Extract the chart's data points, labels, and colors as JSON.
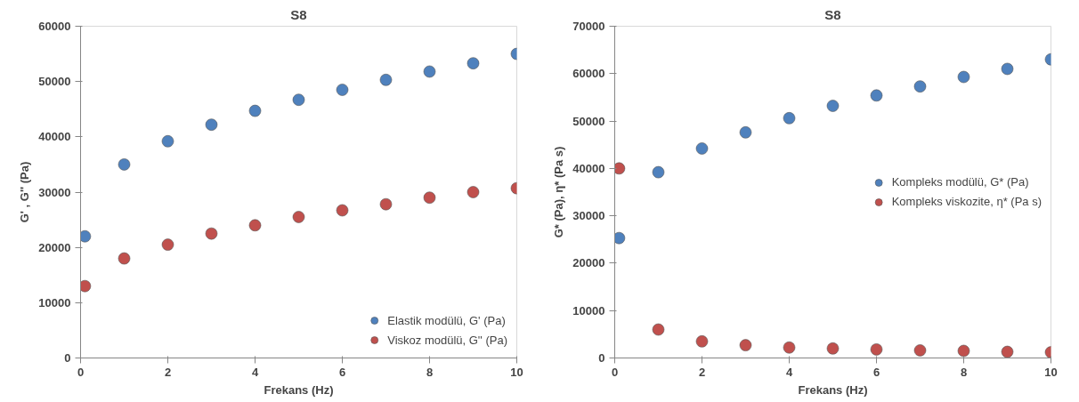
{
  "chart_data": [
    {
      "type": "scatter",
      "title": "S8",
      "xlabel": "Frekans (Hz)",
      "ylabel": "G' , G'' (Pa)",
      "x": [
        0.1,
        1,
        2,
        3,
        4,
        5,
        6,
        7,
        8,
        9,
        10
      ],
      "xlim": [
        0,
        10
      ],
      "xticks": [
        0,
        2,
        4,
        6,
        8,
        10
      ],
      "ylim": [
        0,
        60000
      ],
      "yticks": [
        0,
        10000,
        20000,
        30000,
        40000,
        50000,
        60000
      ],
      "marker": "circle",
      "legend": "bottom right",
      "series": [
        {
          "name": "Elastik modülü, G' (Pa)",
          "color": "#4f81bd",
          "values": [
            22000,
            35000,
            39200,
            42200,
            44700,
            46700,
            48500,
            50300,
            51800,
            53300,
            55000
          ]
        },
        {
          "name": "Viskoz modülü, G'' (Pa)",
          "color": "#c0504d",
          "values": [
            13000,
            18000,
            20500,
            22500,
            24000,
            25500,
            26700,
            27800,
            29000,
            30000,
            30700
          ]
        }
      ]
    },
    {
      "type": "scatter",
      "title": "S8",
      "xlabel": "Frekans (Hz)",
      "ylabel": "G* (Pa), η* (Pa s)",
      "x": [
        0.1,
        1,
        2,
        3,
        4,
        5,
        6,
        7,
        8,
        9,
        10
      ],
      "xlim": [
        0,
        10
      ],
      "xticks": [
        0,
        2,
        4,
        6,
        8,
        10
      ],
      "ylim": [
        0,
        70000
      ],
      "yticks": [
        0,
        10000,
        20000,
        30000,
        40000,
        50000,
        60000,
        70000
      ],
      "marker": "circle",
      "legend": "right",
      "series": [
        {
          "name": "Kompleks modülü, G* (Pa)",
          "color": "#4f81bd",
          "values": [
            25300,
            39200,
            44200,
            47600,
            50600,
            53200,
            55400,
            57300,
            59300,
            61000,
            63000
          ]
        },
        {
          "name": "Kompleks viskozite, η* (Pa s)",
          "color": "#c0504d",
          "values": [
            40000,
            6000,
            3500,
            2700,
            2200,
            2000,
            1800,
            1600,
            1500,
            1300,
            1200
          ]
        }
      ]
    }
  ]
}
